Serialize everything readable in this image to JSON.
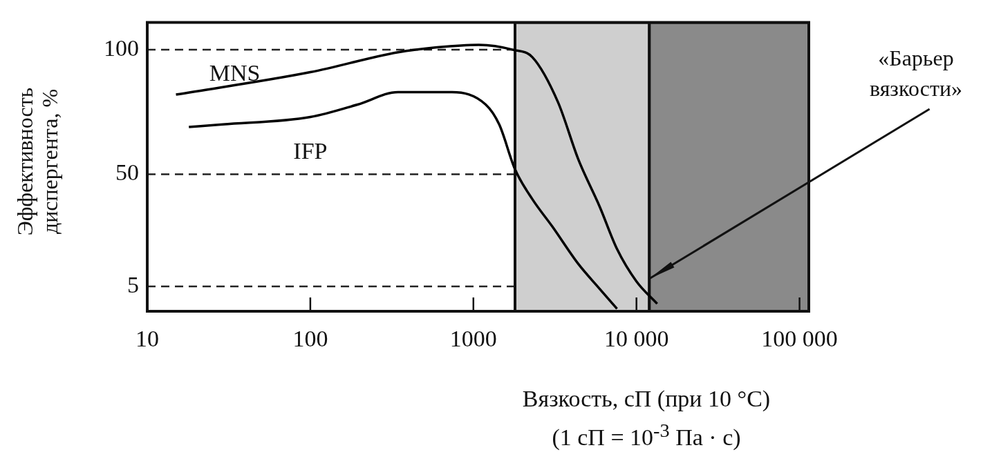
{
  "chart_data": {
    "type": "line",
    "xlabel": "Вязкость, сП (при 10 °C)\n(1 сП = 10$^{-3}$ Па · с)",
    "ylabel": "Эффективность диспергента, %",
    "log": "x",
    "xlim": [
      10,
      114000
    ],
    "xticks": [
      10,
      100,
      1000,
      {
        "value": 10000,
        "label": "10 000"
      },
      {
        "value": 100000,
        "label": "100 000"
      }
    ],
    "ylim": [
      -5,
      111
    ],
    "yticks": [
      5,
      50,
      100
    ],
    "grid": false,
    "legend": false,
    "marker": "none",
    "line_style": "solid",
    "series": [
      {
        "name": "MNS",
        "color": "#000000",
        "x": [
          15,
          100,
          345,
          600,
          1080,
          1750,
          2300,
          3300,
          4400,
          5950,
          7600,
          10000,
          13400
        ],
        "values": [
          82,
          91,
          99,
          101,
          102,
          100,
          97,
          79,
          56,
          37,
          20,
          7,
          -2
        ]
      },
      {
        "name": "IFP",
        "color": "#000000",
        "x": [
          18,
          29,
          100,
          195,
          345,
          600,
          740,
          1190,
          1440,
          1800,
          2300,
          3050,
          4400,
          5950,
          7600
        ],
        "values": [
          69,
          70,
          73,
          78,
          83,
          83,
          83,
          78,
          70,
          52,
          40,
          29,
          14,
          4,
          -4
        ]
      }
    ],
    "ref_lines": [
      {
        "axis": "y",
        "value": 100,
        "line_style": "dashed"
      },
      {
        "axis": "y",
        "value": 50,
        "line_style": "dashed"
      },
      {
        "axis": "y",
        "value": 5,
        "line_style": "dashed"
      }
    ],
    "bands": [
      {
        "axis": "x",
        "from": 1800,
        "to": 12000,
        "color": "#cfcfcf"
      },
      {
        "axis": "x",
        "from": 12000,
        "to": 114000,
        "color": "#8a8a8a"
      }
    ],
    "annotations": [
      {
        "text": "«Барьер вязкости»",
        "x": 12000,
        "y": 8
      }
    ]
  }
}
